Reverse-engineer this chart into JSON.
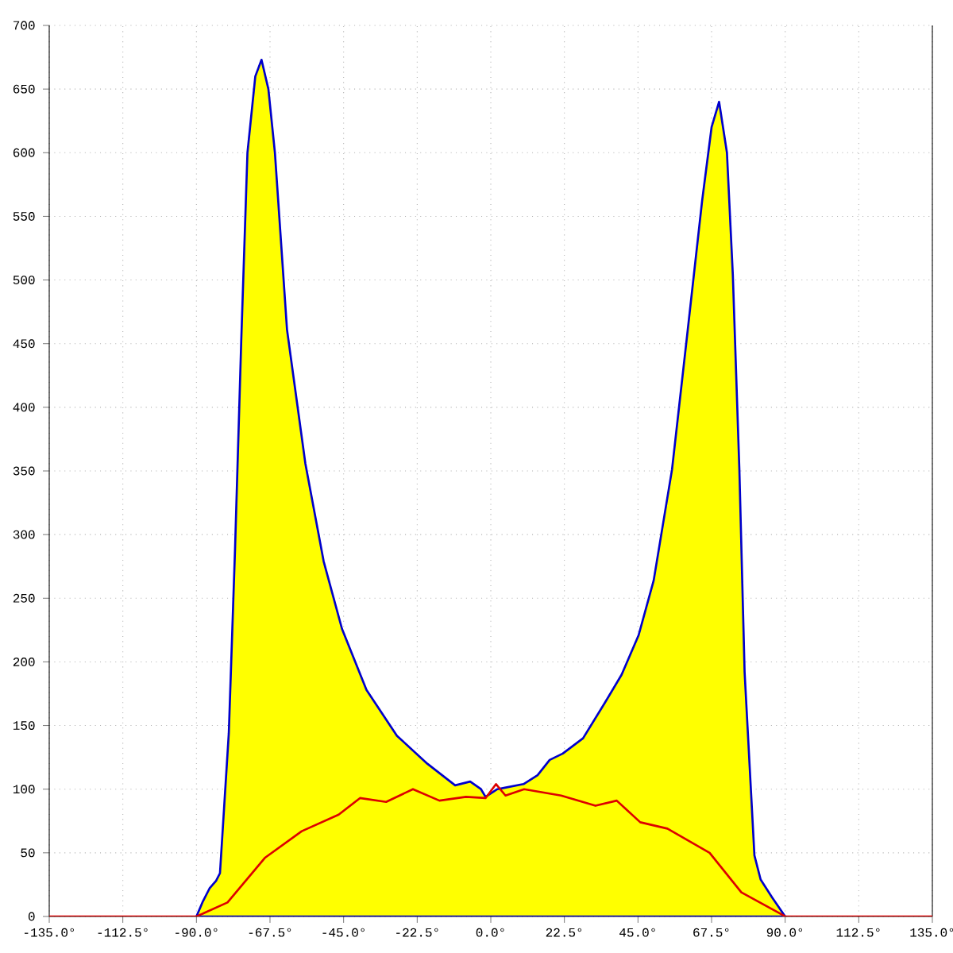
{
  "chart_data": {
    "type": "area",
    "series": [
      {
        "color": "#ffff00",
        "x": [
          -90,
          -88,
          -86,
          -84,
          -82.8,
          -80.1,
          -78.2,
          -76.3,
          -74.4,
          -72,
          -70.1,
          -68,
          -66,
          -62.3,
          -56.7,
          -51.1,
          -45.5,
          -38,
          -28.7,
          -19.4,
          -10.9,
          -6.3,
          -3,
          -1.6,
          2,
          4,
          10,
          14.3,
          18,
          22,
          28.2,
          34.9,
          40,
          45.2,
          49.8,
          55.4,
          60,
          64.6,
          67.5,
          69.8,
          72.2,
          74,
          76,
          77.6,
          80.6,
          82.5,
          86,
          90
        ],
        "values": [
          0,
          12,
          22,
          28,
          34,
          144,
          288,
          452,
          600,
          660,
          673,
          650,
          600,
          461,
          356,
          279,
          226,
          178,
          142,
          120,
          103,
          106,
          100,
          94,
          100,
          101,
          104,
          111,
          123,
          128,
          140,
          168,
          190,
          221,
          264,
          351,
          456,
          562,
          620,
          640,
          600,
          504,
          351,
          192,
          48,
          29,
          15,
          0
        ]
      },
      {
        "type": "line",
        "color": "#dd0000",
        "x": [
          -135,
          -90,
          -80.5,
          -69.1,
          -57.8,
          -46.5,
          -40,
          -32,
          -23.8,
          -15.7,
          -7.6,
          -1.6,
          1.6,
          4.5,
          10.2,
          21.5,
          32,
          38.5,
          45.7,
          54,
          66.9,
          76.6,
          88.7,
          90,
          135
        ],
        "values": [
          0,
          0,
          11,
          46,
          67,
          80,
          93,
          90,
          100,
          91,
          94,
          93,
          104,
          95,
          100,
          95,
          87,
          91,
          74,
          69,
          50,
          19,
          2,
          0,
          0
        ]
      }
    ],
    "xlim": [
      -135,
      135
    ],
    "xticks": [
      {
        "value": -135,
        "label": "-135.0°"
      },
      {
        "value": -112.5,
        "label": "-112.5°"
      },
      {
        "value": -90,
        "label": "-90.0°"
      },
      {
        "value": -67.5,
        "label": "-67.5°"
      },
      {
        "value": -45,
        "label": "-45.0°"
      },
      {
        "value": -22.5,
        "label": "-22.5°"
      },
      {
        "value": 0,
        "label": "0.0°"
      },
      {
        "value": 22.5,
        "label": "22.5°"
      },
      {
        "value": 45,
        "label": "45.0°"
      },
      {
        "value": 67.5,
        "label": "67.5°"
      },
      {
        "value": 90,
        "label": "90.0°"
      },
      {
        "value": 112.5,
        "label": "112.5°"
      },
      {
        "value": 135,
        "label": "135.0°"
      }
    ],
    "ylim": [
      0,
      700
    ],
    "yticks": [
      0,
      50,
      100,
      150,
      200,
      250,
      300,
      350,
      400,
      450,
      500,
      550,
      600,
      650,
      700
    ],
    "grid": true
  }
}
